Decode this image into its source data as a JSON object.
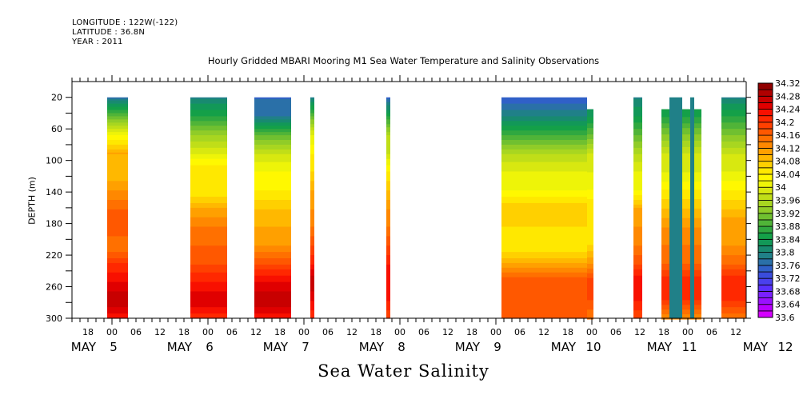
{
  "header": {
    "longitude": "LONGITUDE : 122W(-122)",
    "latitude": "LATITUDE : 36.8N",
    "year": "YEAR : 2011"
  },
  "chart_data": {
    "type": "heatmap",
    "title": "Hourly Gridded MBARI Mooring M1 Sea Water Temperature and Salinity Observations",
    "xlabel": "Sea Water Salinity",
    "ylabel": "DEPTH (m)",
    "x_range_hours": {
      "start": "2011-05-04T14:00",
      "end": "2011-05-12T16:40"
    },
    "x_hour_tick_labels": [
      "18",
      "00",
      "06",
      "12",
      "18",
      "00",
      "06",
      "12",
      "18",
      "00",
      "06",
      "12",
      "18",
      "00",
      "06",
      "12",
      "18",
      "00",
      "06",
      "12",
      "18",
      "00",
      "06",
      "12",
      "18",
      "00",
      "06",
      "12",
      "18",
      "00",
      "06",
      "12"
    ],
    "x_day_labels": [
      {
        "month": "MAY",
        "day": "5",
        "at_hour": 0
      },
      {
        "month": "MAY",
        "day": "6",
        "at_hour": 24
      },
      {
        "month": "MAY",
        "day": "7",
        "at_hour": 48
      },
      {
        "month": "MAY",
        "day": "8",
        "at_hour": 72
      },
      {
        "month": "MAY",
        "day": "9",
        "at_hour": 96
      },
      {
        "month": "MAY",
        "day": "10",
        "at_hour": 120
      },
      {
        "month": "MAY",
        "day": "11",
        "at_hour": 144
      },
      {
        "month": "MAY",
        "day": "12",
        "at_hour": 168
      }
    ],
    "y_range": [
      0,
      300
    ],
    "y_inverted": true,
    "y_ticks": [
      20,
      60,
      100,
      140,
      180,
      220,
      260,
      300
    ],
    "colorbar": {
      "min": 33.6,
      "max": 34.32,
      "step": 0.02,
      "labels": [
        "34.32",
        "34.28",
        "34.24",
        "34.2",
        "34.16",
        "34.12",
        "34.08",
        "34.04",
        "34",
        "33.96",
        "33.92",
        "33.88",
        "33.84",
        "33.8",
        "33.76",
        "33.72",
        "33.68",
        "33.64",
        "33.6"
      ],
      "colors": [
        "#d400ff",
        "#b800ff",
        "#9a10ff",
        "#7a20ff",
        "#5a30ff",
        "#4a40ee",
        "#3a4cdc",
        "#3060c8",
        "#2a70a8",
        "#208088",
        "#188a70",
        "#129858",
        "#14a048",
        "#30a840",
        "#50b438",
        "#70c030",
        "#90cc28",
        "#a8d620",
        "#c0de18",
        "#d8e810",
        "#eef408",
        "#fff800",
        "#ffe800",
        "#ffd000",
        "#ffb800",
        "#ffa000",
        "#ff8800",
        "#ff7000",
        "#ff5800",
        "#ff4000",
        "#ff2800",
        "#f81000",
        "#e00000",
        "#c80000",
        "#b00000",
        "#900000"
      ]
    },
    "segments": [
      {
        "start_hour": -1.2,
        "end_hour": 4,
        "top_depth": 20,
        "profile": [
          33.78,
          33.9,
          34.02,
          34.1,
          34.08,
          34.12,
          34.16,
          34.18,
          34.14,
          34.2,
          34.24,
          34.28,
          34.22
        ]
      },
      {
        "start_hour": 19.6,
        "end_hour": 28.8,
        "top_depth": 20,
        "profile": [
          33.8,
          33.86,
          33.94,
          34.0,
          34.06,
          34.04,
          34.1,
          34.14,
          34.16,
          34.18,
          34.22,
          34.26,
          34.2
        ]
      },
      {
        "start_hour": 35.6,
        "end_hour": 44.8,
        "top_depth": 20,
        "profile": [
          33.76,
          33.78,
          33.9,
          33.98,
          34.02,
          34.04,
          34.08,
          34.1,
          34.12,
          34.18,
          34.24,
          34.28,
          34.22
        ]
      },
      {
        "start_hour": 49.6,
        "end_hour": 50.6,
        "top_depth": 20,
        "profile": [
          33.8,
          33.9,
          34.0,
          34.04,
          34.06,
          34.1,
          34.12,
          34.14,
          34.18,
          34.22,
          34.28,
          34.24,
          34.2
        ]
      },
      {
        "start_hour": 68.6,
        "end_hour": 69.6,
        "top_depth": 20,
        "profile": [
          33.76,
          33.86,
          33.96,
          33.98,
          34.04,
          34.08,
          34.12,
          34.14,
          34.18,
          34.22,
          34.24,
          34.22,
          34.18
        ]
      },
      {
        "start_hour": 97.4,
        "end_hour": 118.8,
        "top_depth": 20,
        "profile": [
          33.74,
          33.8,
          33.88,
          33.96,
          34.0,
          34.02,
          34.08,
          34.06,
          34.04,
          34.1,
          34.18,
          34.18,
          34.16
        ]
      },
      {
        "start_hour": 118.8,
        "end_hour": 120.4,
        "top_depth": 35,
        "profile": [
          33.8,
          33.84,
          33.9,
          33.98,
          34.0,
          34.02,
          34.06,
          34.04,
          34.06,
          34.12,
          34.2,
          34.18,
          34.14
        ]
      },
      {
        "start_hour": 130.4,
        "end_hour": 132.6,
        "top_depth": 20,
        "profile": [
          33.8,
          33.84,
          33.9,
          33.96,
          34.0,
          34.02,
          34.1,
          34.12,
          34.14,
          34.18,
          34.24,
          34.22,
          34.18
        ]
      },
      {
        "start_hour": 137.4,
        "end_hour": 147.4,
        "top_depth": 35,
        "profile": [
          33.82,
          33.86,
          33.92,
          33.98,
          34.0,
          34.04,
          34.08,
          34.12,
          34.14,
          34.16,
          34.22,
          34.2,
          34.12
        ]
      },
      {
        "start_hour": 139.4,
        "end_hour": 142.6,
        "top_depth": 20,
        "profile": [
          33.8
        ]
      },
      {
        "start_hour": 144.6,
        "end_hour": 145.6,
        "top_depth": 20,
        "profile": [
          33.8
        ]
      },
      {
        "start_hour": 152.4,
        "end_hour": 158.6,
        "top_depth": 20,
        "profile": [
          33.8,
          33.86,
          33.92,
          33.98,
          34.0,
          34.04,
          34.08,
          34.12,
          34.12,
          34.16,
          34.22,
          34.2,
          34.14
        ]
      }
    ]
  }
}
